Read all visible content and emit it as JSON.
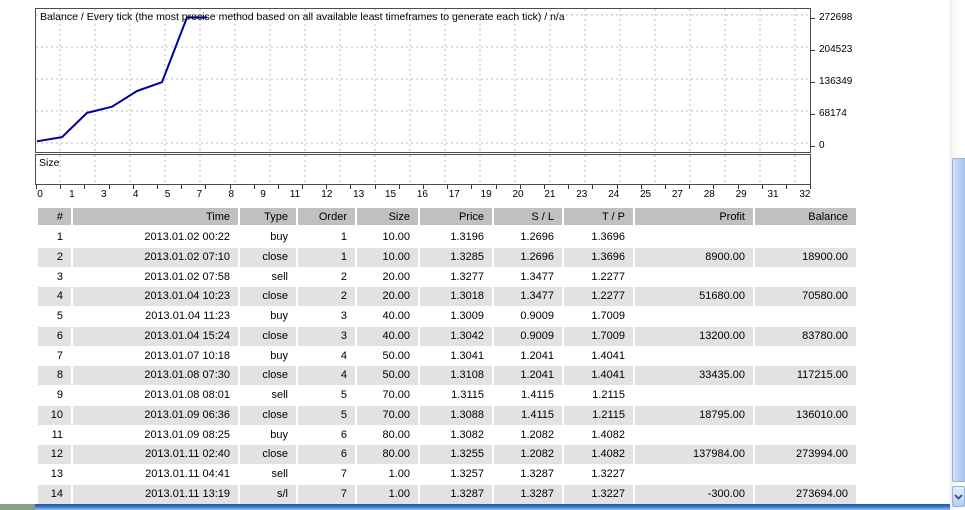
{
  "chart": {
    "title": "Balance / Every tick (the most precise method based on all available least timeframes to generate each tick) / n/a",
    "size_label": "Size",
    "line_color": "#0000a0",
    "grid_color": "#bdbdbd",
    "y_ticks": [
      "272698",
      "204523",
      "136349",
      "68174",
      "0"
    ],
    "x_ticks": [
      "0",
      "1",
      "3",
      "4",
      "5",
      "7",
      "8",
      "9",
      "11",
      "12",
      "13",
      "15",
      "16",
      "17",
      "19",
      "20",
      "21",
      "23",
      "24",
      "25",
      "27",
      "28",
      "29",
      "31",
      "32"
    ]
  },
  "chart_data": {
    "type": "line",
    "title": "Balance / Every tick (the most precise method based on all available least timeframes to generate each tick) / n/a",
    "x": [
      0,
      1,
      2,
      3,
      4,
      5,
      6,
      7
    ],
    "series": [
      {
        "name": "Balance",
        "values": [
          10000,
          18900,
          70580,
          83780,
          117215,
          136010,
          273994,
          273694
        ]
      }
    ],
    "y_axis_ticks": [
      0,
      68174,
      136349,
      204523,
      272698
    ],
    "x_axis_tick_labels": [
      "0",
      "1",
      "3",
      "4",
      "5",
      "7",
      "8",
      "9",
      "11",
      "12",
      "13",
      "15",
      "16",
      "17",
      "19",
      "20",
      "21",
      "23",
      "24",
      "25",
      "27",
      "28",
      "29",
      "31",
      "32"
    ],
    "ylim": [
      0,
      286000
    ],
    "grid": true,
    "legend_position": "none",
    "panels": [
      {
        "name": "Balance",
        "has_data": true
      },
      {
        "name": "Size",
        "has_data": false
      }
    ]
  },
  "table": {
    "headers": [
      "#",
      "Time",
      "Type",
      "Order",
      "Size",
      "Price",
      "S / L",
      "T / P",
      "Profit",
      "Balance"
    ],
    "rows": [
      [
        "1",
        "2013.01.02 00:22",
        "buy",
        "1",
        "10.00",
        "1.3196",
        "1.2696",
        "1.3696",
        "",
        ""
      ],
      [
        "2",
        "2013.01.02 07:10",
        "close",
        "1",
        "10.00",
        "1.3285",
        "1.2696",
        "1.3696",
        "8900.00",
        "18900.00"
      ],
      [
        "3",
        "2013.01.02 07:58",
        "sell",
        "2",
        "20.00",
        "1.3277",
        "1.3477",
        "1.2277",
        "",
        ""
      ],
      [
        "4",
        "2013.01.04 10:23",
        "close",
        "2",
        "20.00",
        "1.3018",
        "1.3477",
        "1.2277",
        "51680.00",
        "70580.00"
      ],
      [
        "5",
        "2013.01.04 11:23",
        "buy",
        "3",
        "40.00",
        "1.3009",
        "0.9009",
        "1.7009",
        "",
        ""
      ],
      [
        "6",
        "2013.01.04 15:24",
        "close",
        "3",
        "40.00",
        "1.3042",
        "0.9009",
        "1.7009",
        "13200.00",
        "83780.00"
      ],
      [
        "7",
        "2013.01.07 10:18",
        "buy",
        "4",
        "50.00",
        "1.3041",
        "1.2041",
        "1.4041",
        "",
        ""
      ],
      [
        "8",
        "2013.01.08 07:30",
        "close",
        "4",
        "50.00",
        "1.3108",
        "1.2041",
        "1.4041",
        "33435.00",
        "117215.00"
      ],
      [
        "9",
        "2013.01.08 08:01",
        "sell",
        "5",
        "70.00",
        "1.3115",
        "1.4115",
        "1.2115",
        "",
        ""
      ],
      [
        "10",
        "2013.01.09 06:36",
        "close",
        "5",
        "70.00",
        "1.3088",
        "1.4115",
        "1.2115",
        "18795.00",
        "136010.00"
      ],
      [
        "11",
        "2013.01.09 08:25",
        "buy",
        "6",
        "80.00",
        "1.3082",
        "1.2082",
        "1.4082",
        "",
        ""
      ],
      [
        "12",
        "2013.01.11 02:40",
        "close",
        "6",
        "80.00",
        "1.3255",
        "1.2082",
        "1.4082",
        "137984.00",
        "273994.00"
      ],
      [
        "13",
        "2013.01.11 04:41",
        "sell",
        "7",
        "1.00",
        "1.3257",
        "1.3287",
        "1.3227",
        "",
        ""
      ],
      [
        "14",
        "2013.01.11 13:19",
        "s/l",
        "7",
        "1.00",
        "1.3287",
        "1.3287",
        "1.3227",
        "-300.00",
        "273694.00"
      ]
    ]
  },
  "colors": {
    "header_bg": "#c0c0c0",
    "alt_row_bg": "#e2e2e2",
    "scroll_thumb": "#bcd2f4",
    "bottom_bar_blue": "#3a76c8",
    "bottom_bar_green": "#84a284"
  }
}
